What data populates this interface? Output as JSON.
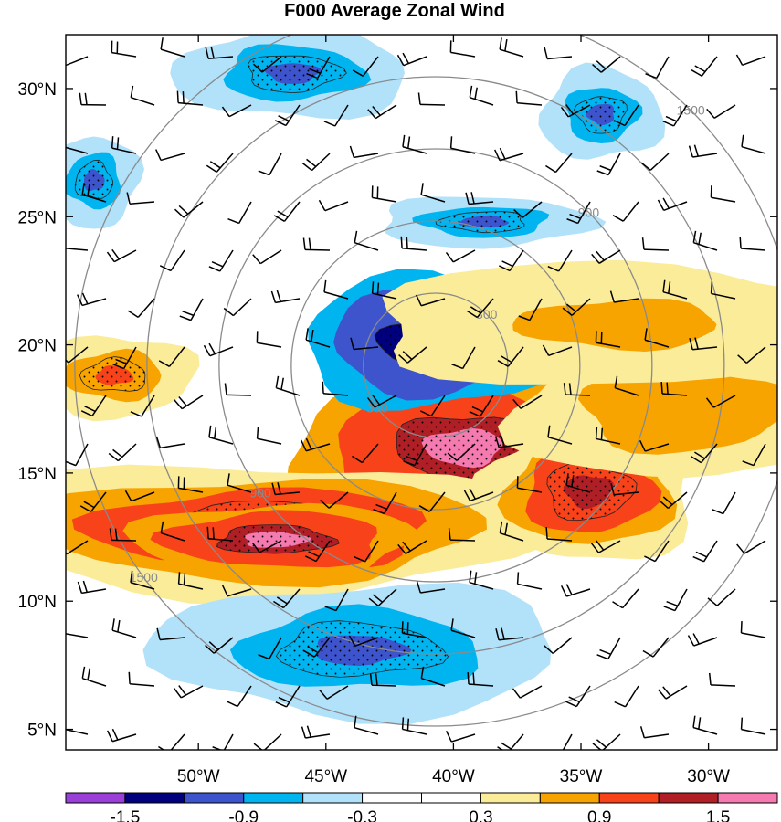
{
  "chart_data": {
    "type": "heatmap",
    "title": "F000 Average Zonal Wind",
    "xlabel": "",
    "ylabel": "",
    "x_ticks": [
      "50°W",
      "45°W",
      "40°W",
      "35°W",
      "30°W"
    ],
    "x_tick_values": [
      -50,
      -45,
      -40,
      -35,
      -30
    ],
    "y_ticks": [
      "5°N",
      "10°N",
      "15°N",
      "20°N",
      "25°N",
      "30°N"
    ],
    "y_tick_values": [
      5,
      10,
      15,
      20,
      25,
      30
    ],
    "xlim": [
      -55.2,
      -27.3
    ],
    "ylim": [
      4.2,
      32.1
    ],
    "storm_center": {
      "lon": -40.7,
      "lat": 19.2
    },
    "range_rings": {
      "values": [
        300,
        600,
        900,
        1200,
        1500
      ],
      "labeled": [
        "300",
        "900",
        "1500"
      ],
      "color": "#8a8a8a"
    },
    "colorbar": {
      "labels": [
        "-1.5",
        "-0.9",
        "-0.3",
        "0.3",
        "0.9",
        "1.5"
      ],
      "label_values": [
        -1.5,
        -0.9,
        -0.3,
        0.3,
        0.9,
        1.5
      ],
      "boundaries": [
        -1.8,
        -1.5,
        -1.2,
        -0.9,
        -0.6,
        -0.3,
        0,
        0.3,
        0.6,
        0.9,
        1.2,
        1.5,
        1.8
      ],
      "colors": [
        "#9a40d8",
        "#00007f",
        "#3d54cc",
        "#00b4f0",
        "#b2e1fa",
        "#ffffff",
        "#ffffff",
        "#fbec9a",
        "#f7a300",
        "#f7421a",
        "#b01f26",
        "#f47ab0"
      ]
    },
    "features": [
      {
        "name": "central positive core",
        "lon": -39.6,
        "lat": 16.0,
        "rx": 3.4,
        "ry": 1.6,
        "value": 1.6,
        "stippled": true
      },
      {
        "name": "central negative core",
        "lon": -40.8,
        "lat": 20.1,
        "rx": 2.6,
        "ry": 1.3,
        "value": -1.6,
        "stippled": true
      },
      {
        "name": "western positive band",
        "lon": -47.5,
        "lat": 12.8,
        "rx": 5.6,
        "ry": 1.3,
        "value": 1.3,
        "stippled": true
      },
      {
        "name": "pink tongue west",
        "lon": -47.0,
        "lat": 12.4,
        "rx": 2.8,
        "ry": 0.7,
        "value": 1.6,
        "stippled": true
      },
      {
        "name": "eastern positive lobe",
        "lon": -34.7,
        "lat": 14.3,
        "rx": 2.1,
        "ry": 1.4,
        "value": 1.25,
        "stippled": true
      },
      {
        "name": "east orange jet",
        "lon": -31.0,
        "lat": 17.5,
        "rx": 3.4,
        "ry": 1.4,
        "value": 0.85,
        "stippled": false
      },
      {
        "name": "northeast orange band",
        "lon": -33.5,
        "lat": 20.8,
        "rx": 5.0,
        "ry": 1.2,
        "value": 0.75,
        "stippled": false
      },
      {
        "name": "west red patch",
        "lon": -53.3,
        "lat": 18.8,
        "rx": 1.6,
        "ry": 0.8,
        "value": 0.95,
        "stippled": true
      },
      {
        "name": "southern negative pool",
        "lon": -43.7,
        "lat": 8.1,
        "rx": 4.0,
        "ry": 1.3,
        "value": -1.0,
        "stippled": true
      },
      {
        "name": "northern negative patch",
        "lon": -46.3,
        "lat": 30.6,
        "rx": 2.3,
        "ry": 0.9,
        "value": -0.95,
        "stippled": true
      },
      {
        "name": "northeast negative blob",
        "lon": -34.2,
        "lat": 29.0,
        "rx": 1.2,
        "ry": 0.9,
        "value": -1.0,
        "stippled": true
      },
      {
        "name": "north-central negative streak",
        "lon": -38.8,
        "lat": 24.8,
        "rx": 2.1,
        "ry": 0.5,
        "value": -0.95,
        "stippled": true
      },
      {
        "name": "far west negative blob",
        "lon": -54.1,
        "lat": 26.4,
        "rx": 0.9,
        "ry": 0.9,
        "value": -1.0,
        "stippled": true
      }
    ]
  }
}
